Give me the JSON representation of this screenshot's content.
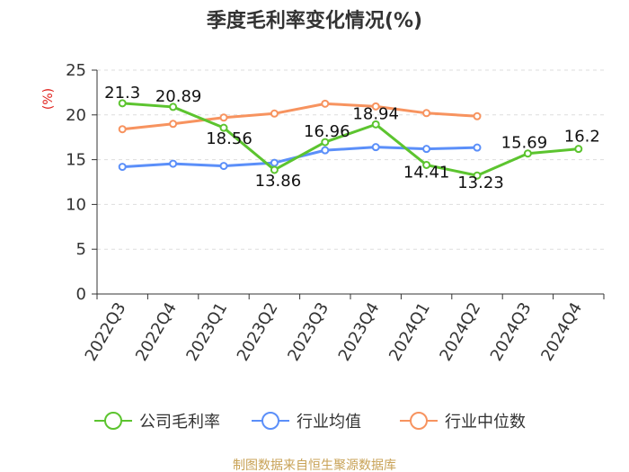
{
  "chart_data": {
    "type": "line",
    "title": "季度毛利率变化情况(%)",
    "ylabel": "(%)",
    "xlabel": "",
    "categories": [
      "2022Q3",
      "2022Q4",
      "2023Q1",
      "2023Q2",
      "2023Q3",
      "2023Q4",
      "2024Q1",
      "2024Q2",
      "2024Q3",
      "2024Q4"
    ],
    "ylim": [
      0,
      25
    ],
    "yticks": [
      0,
      5,
      10,
      15,
      20,
      25
    ],
    "grid": true,
    "legend_position": "bottom",
    "series": [
      {
        "name": "公司毛利率",
        "color": "#5cc42f",
        "values": [
          21.3,
          20.89,
          18.56,
          13.86,
          16.96,
          18.94,
          14.41,
          13.23,
          15.69,
          16.2
        ],
        "labels": [
          "21.3",
          "20.89",
          "18.56",
          "13.86",
          "16.96",
          "18.94",
          "14.41",
          "13.23",
          "15.69",
          "16.2"
        ]
      },
      {
        "name": "行业均值",
        "color": "#5b8ff9",
        "values": [
          14.2,
          14.55,
          14.3,
          14.65,
          16.05,
          16.4,
          16.2,
          16.35,
          null,
          null
        ]
      },
      {
        "name": "行业中位数",
        "color": "#f7935f",
        "values": [
          18.4,
          19.0,
          19.7,
          20.15,
          21.25,
          20.95,
          20.2,
          19.85,
          null,
          null
        ]
      }
    ],
    "source": "制图数据来自恒生聚源数据库"
  }
}
